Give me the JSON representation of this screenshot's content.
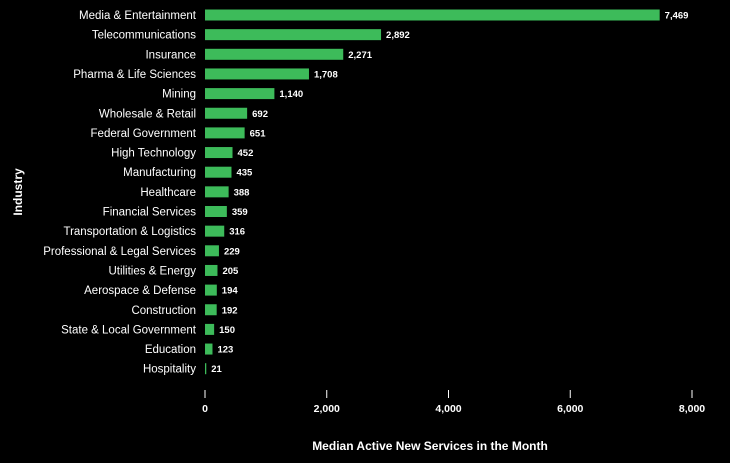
{
  "chart_data": {
    "type": "bar",
    "orientation": "horizontal",
    "title": "",
    "xlabel": "Median Active New Services in the Month",
    "ylabel": "Industry",
    "xlim": [
      0,
      8000
    ],
    "xticks": [
      0,
      2000,
      4000,
      6000,
      8000
    ],
    "xtick_labels": [
      "0",
      "2,000",
      "4,000",
      "6,000",
      "8,000"
    ],
    "grid": false,
    "legend": "none",
    "bar_color": "#3dbb5a",
    "background": "#000000",
    "categories": [
      "Media & Entertainment",
      "Telecommunications",
      "Insurance",
      "Pharma & Life Sciences",
      "Mining",
      "Wholesale & Retail",
      "Federal Government",
      "High Technology",
      "Manufacturing",
      "Healthcare",
      "Financial Services",
      "Transportation & Logistics",
      "Professional & Legal Services",
      "Utilities & Energy",
      "Aerospace & Defense",
      "Construction",
      "State & Local Government",
      "Education",
      "Hospitality"
    ],
    "values": [
      7469,
      2892,
      2271,
      1708,
      1140,
      692,
      651,
      452,
      435,
      388,
      359,
      316,
      229,
      205,
      194,
      192,
      150,
      123,
      21
    ],
    "value_labels": [
      "7,469",
      "2,892",
      "2,271",
      "1,708",
      "1,140",
      "692",
      "651",
      "452",
      "435",
      "388",
      "359",
      "316",
      "229",
      "205",
      "194",
      "192",
      "150",
      "123",
      "21"
    ]
  }
}
